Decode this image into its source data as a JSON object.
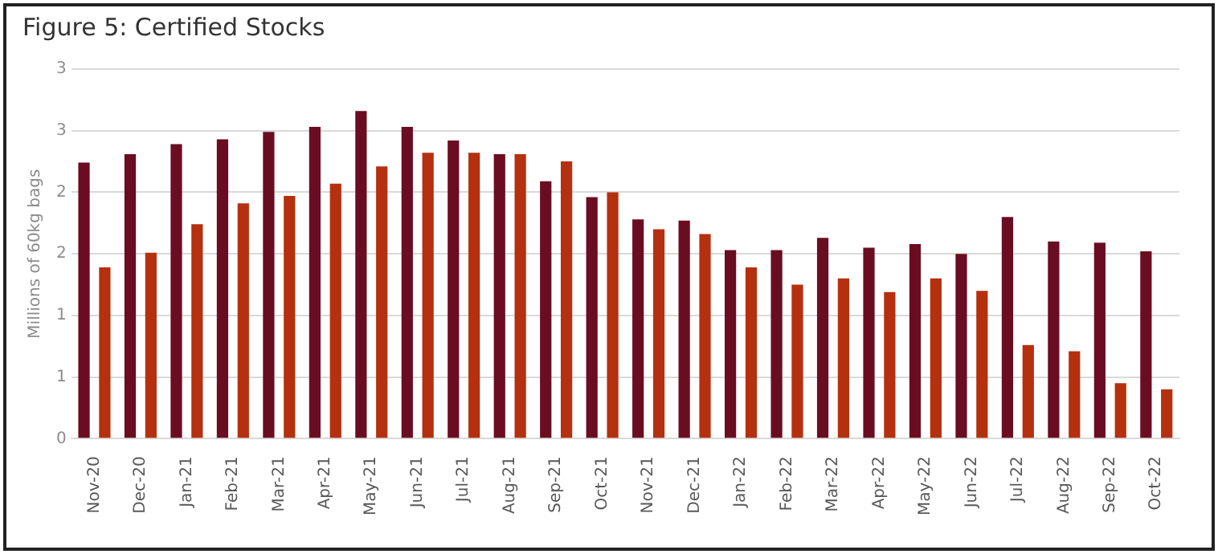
{
  "chart_data": {
    "type": "bar",
    "title": "Figure 5: Certified Stocks",
    "ylabel": "Millions of 60kg bags",
    "categories": [
      "Nov-20",
      "Dec-20",
      "Jan-21",
      "Feb-21",
      "Mar-21",
      "Apr-21",
      "May-21",
      "Jun-21",
      "Jul-21",
      "Aug-21",
      "Sep-21",
      "Oct-21",
      "Nov-21",
      "Dec-21",
      "Jan-22",
      "Feb-22",
      "Mar-22",
      "Apr-22",
      "May-22",
      "Jun-22",
      "Jul-22",
      "Aug-22",
      "Sep-22",
      "Oct-22"
    ],
    "series": [
      {
        "color": "#6b0d22",
        "values": [
          2.24,
          2.31,
          2.39,
          2.43,
          2.49,
          2.53,
          2.66,
          2.53,
          2.42,
          2.31,
          2.09,
          1.96,
          1.78,
          1.77,
          1.53,
          1.53,
          1.63,
          1.55,
          1.58,
          1.5,
          1.8,
          1.6,
          1.59,
          1.52
        ]
      },
      {
        "color": "#b5300f",
        "values": [
          1.39,
          1.51,
          1.74,
          1.91,
          1.97,
          2.07,
          2.21,
          2.32,
          2.32,
          2.31,
          2.25,
          2.0,
          1.7,
          1.66,
          1.39,
          1.25,
          1.3,
          1.19,
          1.3,
          1.2,
          0.76,
          0.71,
          0.45,
          0.4
        ]
      }
    ],
    "ylim": [
      0,
      3
    ],
    "yticks": [
      0,
      {
        "value": 0.5,
        "label": "1"
      },
      1,
      {
        "value": 1.5,
        "label": "2"
      },
      2,
      {
        "value": 2.5,
        "label": "3"
      },
      3
    ],
    "grid": "y"
  }
}
